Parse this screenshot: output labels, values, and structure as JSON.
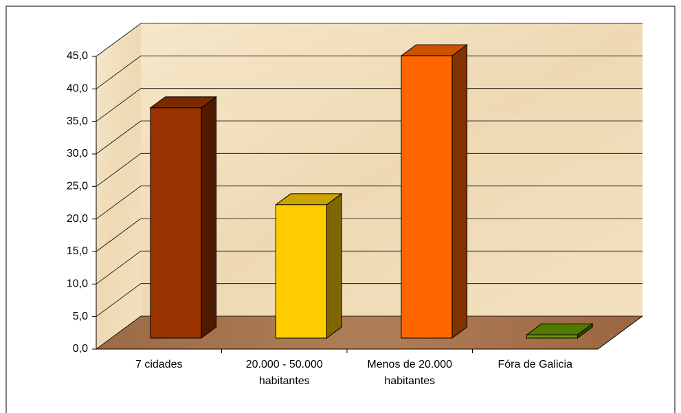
{
  "chart_data": {
    "type": "bar3d",
    "categories": [
      "7 cidades",
      "20.000 - 50.000 habitantes",
      "Menos de 20.000 habitantes",
      "Fóra de Galicia"
    ],
    "values": [
      35.4,
      20.5,
      43.4,
      0.5
    ],
    "colors": [
      "#993300",
      "#ffcc00",
      "#ff6600",
      "#669900"
    ],
    "ylim": [
      0,
      45
    ],
    "yticks": [
      {
        "value": 0,
        "label": "0,0"
      },
      {
        "value": 5,
        "label": "5,0"
      },
      {
        "value": 10,
        "label": "10,0"
      },
      {
        "value": 15,
        "label": "15,0"
      },
      {
        "value": 20,
        "label": "20,0"
      },
      {
        "value": 25,
        "label": "25,0"
      },
      {
        "value": 30,
        "label": "30,0"
      },
      {
        "value": 35,
        "label": "35,0"
      },
      {
        "value": 40,
        "label": "40,0"
      },
      {
        "value": 45,
        "label": "45,0"
      }
    ],
    "grid": true
  }
}
